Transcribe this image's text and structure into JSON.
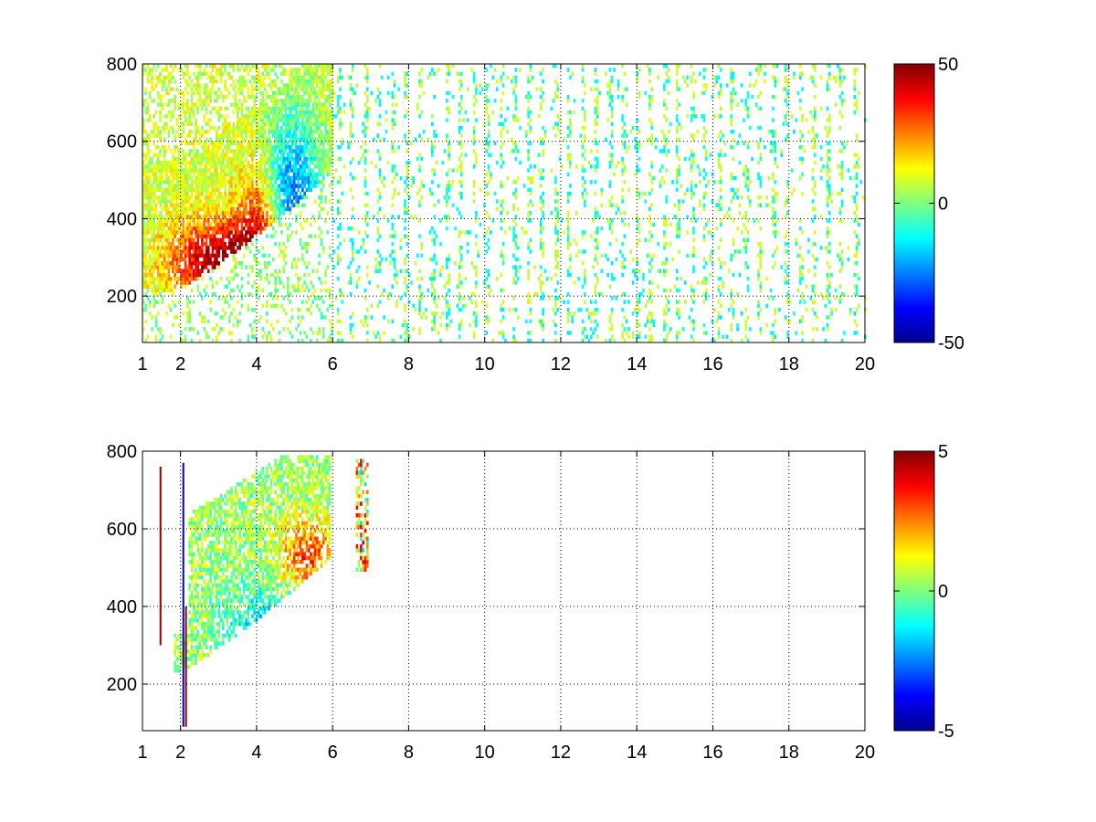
{
  "chart_data": [
    {
      "type": "heatmap",
      "panel": "top",
      "x_ticks": [
        1,
        2,
        4,
        6,
        8,
        10,
        12,
        14,
        16,
        18,
        20
      ],
      "x_tick_labels": [
        "1",
        "2",
        "4",
        "6",
        "8",
        "10",
        "12",
        "14",
        "16",
        "18",
        "20"
      ],
      "xlim": [
        1,
        20
      ],
      "y_ticks": [
        200,
        400,
        600,
        800
      ],
      "y_tick_labels": [
        "200",
        "400",
        "600",
        "800"
      ],
      "ylim": [
        80,
        800
      ],
      "grid": true,
      "colormap": "jet",
      "clim": [
        -50,
        50
      ],
      "colorbar_ticks": [
        50,
        0,
        -50
      ],
      "colorbar_tick_labels": [
        "50",
        "0",
        "-50"
      ],
      "features": [
        {
          "desc": "positive core",
          "x": [
            1.8,
            4.2
          ],
          "y": [
            240,
            460
          ],
          "value": 35
        },
        {
          "desc": "negative band",
          "x": [
            3.6,
            5.8
          ],
          "y": [
            300,
            700
          ],
          "value": -30
        },
        {
          "desc": "mixed near-zero scatter",
          "x": [
            1,
            20
          ],
          "y": [
            80,
            800
          ],
          "value": 2
        }
      ]
    },
    {
      "type": "heatmap",
      "panel": "bottom",
      "x_ticks": [
        1,
        2,
        4,
        6,
        8,
        10,
        12,
        14,
        16,
        18,
        20
      ],
      "x_tick_labels": [
        "1",
        "2",
        "4",
        "6",
        "8",
        "10",
        "12",
        "14",
        "16",
        "18",
        "20"
      ],
      "xlim": [
        1,
        20
      ],
      "y_ticks": [
        200,
        400,
        600,
        800
      ],
      "y_tick_labels": [
        "200",
        "400",
        "600",
        "800"
      ],
      "ylim": [
        80,
        800
      ],
      "grid": true,
      "colormap": "jet",
      "clim": [
        -5,
        5
      ],
      "colorbar_ticks": [
        5,
        0,
        -5
      ],
      "colorbar_tick_labels": [
        "5",
        "0",
        "-5"
      ],
      "features": [
        {
          "desc": "near-zero plume",
          "x": [
            1.8,
            5.8
          ],
          "y": [
            200,
            780
          ],
          "value": 0.3
        },
        {
          "desc": "negative core",
          "x": [
            3.0,
            5.5
          ],
          "y": [
            240,
            450
          ],
          "value": -1.5
        },
        {
          "desc": "positive speckle",
          "x": [
            4.0,
            5.8
          ],
          "y": [
            430,
            620
          ],
          "value": 2.5
        }
      ]
    }
  ]
}
